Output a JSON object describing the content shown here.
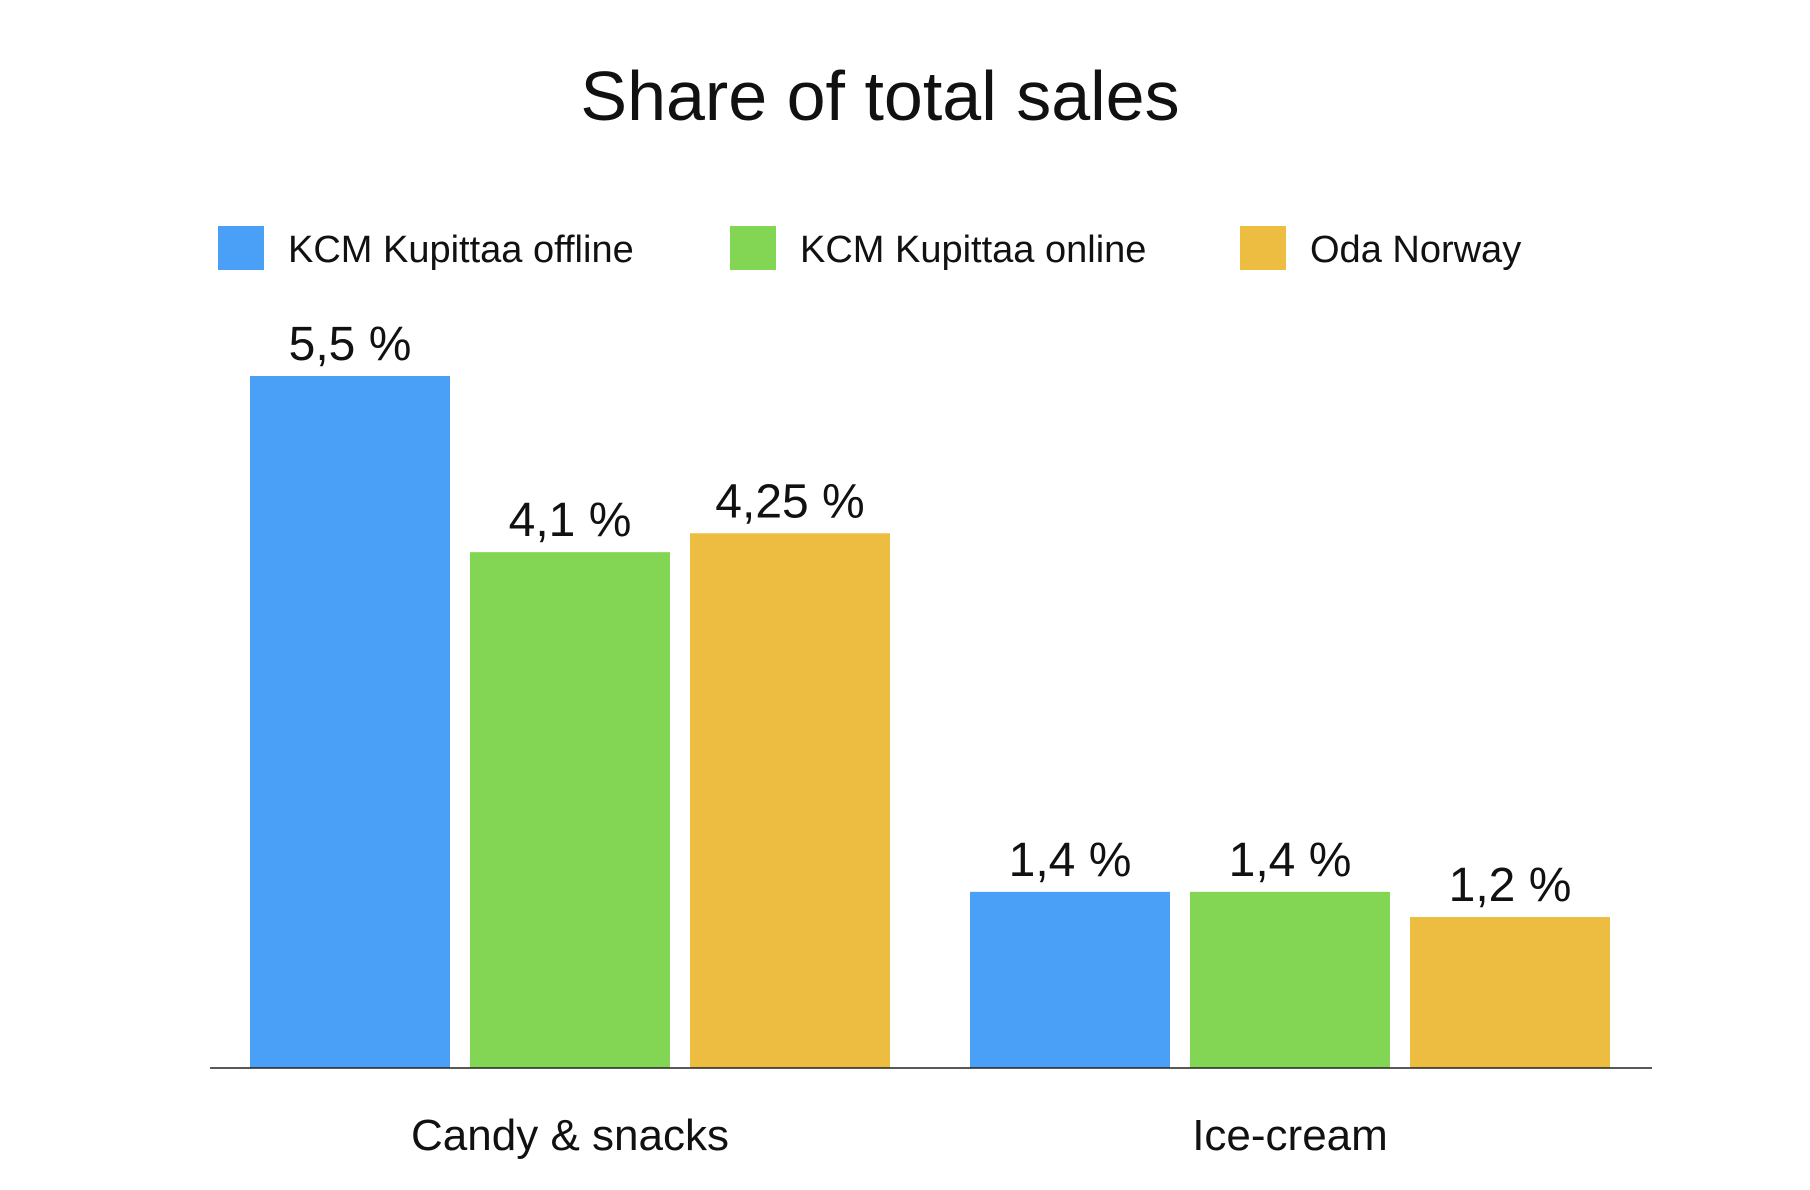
{
  "chart_data": {
    "type": "bar",
    "title": "Share of total sales",
    "xlabel": "",
    "ylabel": "",
    "ylim": [
      0,
      5.5
    ],
    "grid": false,
    "legend_position": "top",
    "categories": [
      "Candy & snacks",
      "Ice-cream"
    ],
    "series": [
      {
        "name": "KCM Kupittaa offline",
        "color": "#4A9FF7",
        "values": [
          5.5,
          1.4
        ],
        "labels": [
          "5,5 %",
          "1,4 %"
        ]
      },
      {
        "name": "KCM Kupittaa online",
        "color": "#82D653",
        "values": [
          4.1,
          1.4
        ],
        "labels": [
          "4,1 %",
          "1,4 %"
        ]
      },
      {
        "name": "Oda Norway",
        "color": "#EDBD41",
        "values": [
          4.25,
          1.2
        ],
        "labels": [
          "4,25 %",
          "1,2 %"
        ]
      }
    ]
  }
}
